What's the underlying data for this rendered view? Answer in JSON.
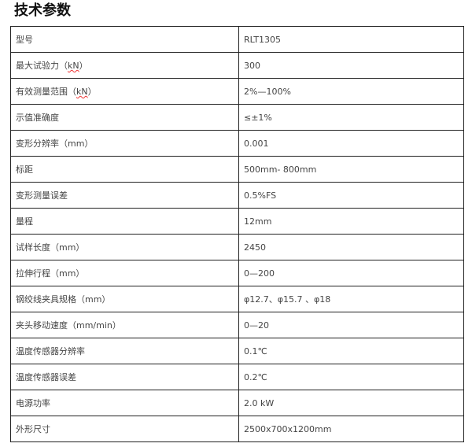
{
  "title": "技术参数",
  "rows": [
    {
      "label": "型号",
      "value": "RLT1305"
    },
    {
      "label": "最大试验力（kN）",
      "value": "300"
    },
    {
      "label": "有效测量范围（kN）",
      "value": "2%—100%"
    },
    {
      "label": "示值准确度",
      "value": "≤±1%"
    },
    {
      "label": "变形分辨率（mm）",
      "value": "0.001"
    },
    {
      "label": "标距",
      "value": "500mm- 800mm"
    },
    {
      "label": "变形测量误差",
      "value": "0.5%FS"
    },
    {
      "label": "量程",
      "value": "12mm"
    },
    {
      "label": "试样长度（mm）",
      "value": "2450"
    },
    {
      "label": "拉伸行程（mm）",
      "value": "0—200"
    },
    {
      "label": "钢绞线夹具规格（mm）",
      "value": "φ12.7、φ15.7 、φ18"
    },
    {
      "label": "夹头移动速度（mm/min）",
      "value": "0—20"
    },
    {
      "label": "温度传感器分辨率",
      "value": "0.1℃"
    },
    {
      "label": "温度传感器误差",
      "value": "0.2℃"
    },
    {
      "label": "电源功率",
      "value": "2.0 kW"
    },
    {
      "label": "外形尺寸",
      "value": "2500x700x1200mm"
    }
  ]
}
